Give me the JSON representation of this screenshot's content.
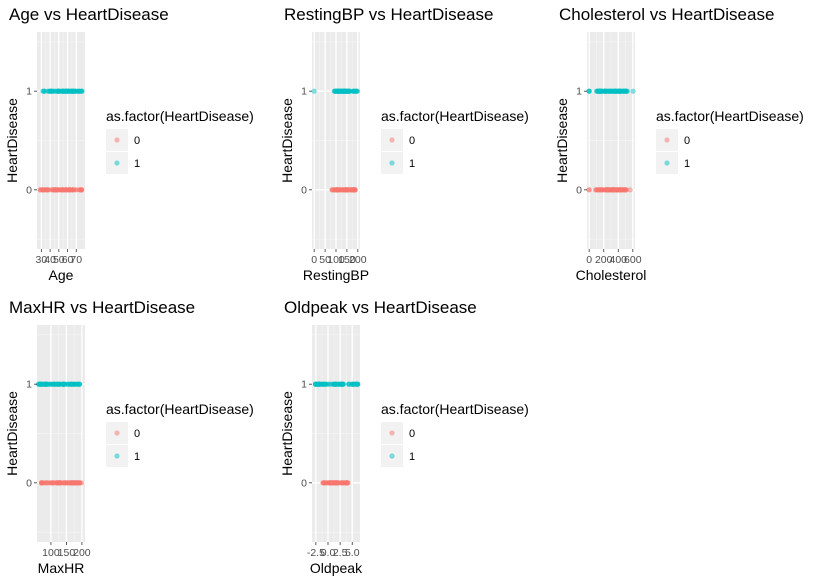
{
  "colors": {
    "class_0": "#F8766D",
    "class_1": "#00BFC4",
    "panel_bg": "#EBEBEB",
    "grid_major": "#FFFFFF",
    "grid_minor": "#F4F4F4",
    "legend_key_bg": "#F2F2F2",
    "tick_text": "#4D4D4D"
  },
  "chart_data": [
    {
      "type": "scatter",
      "title": "Age vs HeartDisease",
      "xlabel": "Age",
      "ylabel": "HeartDisease",
      "xlim": [
        25,
        80
      ],
      "ylim": [
        -1,
        1
      ],
      "x_ticks": [
        30,
        40,
        50,
        60,
        70
      ],
      "x_tick_labels": [
        "30",
        "40",
        "50",
        "60",
        "70"
      ],
      "y_ticks": [
        0,
        1
      ],
      "y_tick_labels": [
        "0",
        "1"
      ],
      "grid": true,
      "legend": {
        "title": "as.factor(HeartDisease)",
        "labels": [
          "0",
          "1"
        ],
        "position": "right"
      },
      "series": [
        {
          "name": "0",
          "y": 0,
          "x_range": [
            28,
            77
          ],
          "point_count": 70
        },
        {
          "name": "1",
          "y": 1,
          "x_range": [
            31,
            77
          ],
          "point_count": 70
        }
      ]
    },
    {
      "type": "scatter",
      "title": "RestingBP vs HeartDisease",
      "xlabel": "RestingBP",
      "ylabel": "HeartDisease",
      "xlim": [
        -10,
        210
      ],
      "ylim": [
        -1,
        1
      ],
      "x_ticks": [
        0,
        50,
        100,
        150,
        200
      ],
      "x_tick_labels": [
        "0",
        "50",
        "100",
        "150",
        "200"
      ],
      "y_ticks": [
        0,
        1
      ],
      "y_tick_labels": [
        "0",
        "1"
      ],
      "grid": true,
      "legend": {
        "title": "as.factor(HeartDisease)",
        "labels": [
          "0",
          "1"
        ],
        "position": "right"
      },
      "series": [
        {
          "name": "0",
          "y": 0,
          "x_range": [
            80,
            190
          ],
          "point_count": 60
        },
        {
          "name": "1",
          "y": 1,
          "x_range": [
            92,
            200
          ],
          "point_count": 60,
          "outliers": [
            0
          ]
        }
      ]
    },
    {
      "type": "scatter",
      "title": "Cholesterol vs HeartDisease",
      "xlabel": "Cholesterol",
      "ylabel": "HeartDisease",
      "xlim": [
        -30,
        630
      ],
      "ylim": [
        -1,
        1
      ],
      "x_ticks": [
        0,
        200,
        400,
        600
      ],
      "x_tick_labels": [
        "0",
        "200",
        "400",
        "600"
      ],
      "y_ticks": [
        0,
        1
      ],
      "y_tick_labels": [
        "0",
        "1"
      ],
      "grid": true,
      "legend": {
        "title": "as.factor(HeartDisease)",
        "labels": [
          "0",
          "1"
        ],
        "position": "right"
      },
      "series": [
        {
          "name": "0",
          "y": 0,
          "x_range": [
            85,
            520
          ],
          "point_count": 70,
          "outliers": [
            0,
            0,
            564
          ]
        },
        {
          "name": "1",
          "y": 1,
          "x_range": [
            100,
            530
          ],
          "point_count": 70,
          "outliers": [
            0,
            0,
            0,
            603
          ]
        }
      ]
    },
    {
      "type": "scatter",
      "title": "MaxHR vs HeartDisease",
      "xlabel": "MaxHR",
      "ylabel": "HeartDisease",
      "xlim": [
        55,
        210
      ],
      "ylim": [
        -1,
        1
      ],
      "x_ticks": [
        100,
        150,
        200
      ],
      "x_tick_labels": [
        "100",
        "150",
        "200"
      ],
      "y_ticks": [
        0,
        1
      ],
      "y_tick_labels": [
        "0",
        "1"
      ],
      "grid": true,
      "legend": {
        "title": "as.factor(HeartDisease)",
        "labels": [
          "0",
          "1"
        ],
        "position": "right"
      },
      "series": [
        {
          "name": "0",
          "y": 0,
          "x_range": [
            69,
            202
          ],
          "point_count": 70
        },
        {
          "name": "1",
          "y": 1,
          "x_range": [
            60,
            195
          ],
          "point_count": 70
        }
      ]
    },
    {
      "type": "scatter",
      "title": "Oldpeak vs HeartDisease",
      "xlabel": "Oldpeak",
      "ylabel": "HeartDisease",
      "xlim": [
        -3.3,
        6.6
      ],
      "ylim": [
        -1,
        1
      ],
      "x_ticks": [
        -2.5,
        0.0,
        2.5,
        5.0
      ],
      "x_tick_labels": [
        "-2.5",
        "0.0",
        "2.5",
        "5.0"
      ],
      "y_ticks": [
        0,
        1
      ],
      "y_tick_labels": [
        "0",
        "1"
      ],
      "grid": true,
      "legend": {
        "title": "as.factor(HeartDisease)",
        "labels": [
          "0",
          "1"
        ],
        "position": "right"
      },
      "series": [
        {
          "name": "0",
          "y": 0,
          "x_range": [
            -1.1,
            4.2
          ],
          "point_count": 55
        },
        {
          "name": "1",
          "y": 1,
          "x_range": [
            -2.6,
            6.2
          ],
          "point_count": 70
        }
      ]
    }
  ]
}
